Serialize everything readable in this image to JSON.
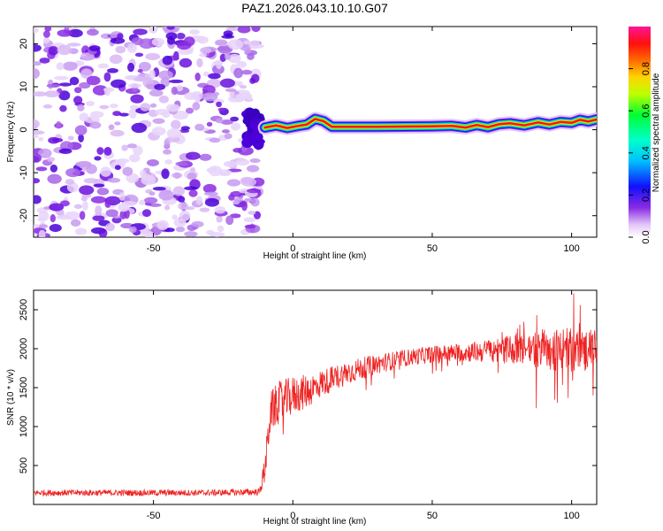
{
  "chart_data": [
    {
      "type": "heatmap",
      "title": "PAZ1.2026.043.10.10.G07",
      "xlabel": "Height of straight line (km)",
      "ylabel": "Frequency (Hz)",
      "xlim": [
        -93,
        109
      ],
      "ylim": [
        -25,
        24
      ],
      "xticks": [
        -50,
        0,
        50,
        100
      ],
      "yticks": [
        20,
        10,
        0,
        -10,
        -20
      ],
      "noise_region_x": [
        -93,
        -12
      ],
      "signal_line": {
        "x": [
          -10,
          -6,
          -2,
          2,
          5,
          8,
          11,
          14,
          30,
          50,
          57,
          62,
          66,
          70,
          74,
          78,
          83,
          88,
          92,
          96,
          100,
          103,
          106,
          109
        ],
        "freq": [
          0.5,
          1.0,
          0.4,
          0.9,
          1.2,
          2.5,
          2.0,
          0.7,
          0.7,
          0.8,
          0.9,
          0.5,
          1.1,
          0.6,
          1.3,
          1.5,
          1.0,
          1.7,
          1.2,
          1.8,
          1.6,
          2.3,
          1.9,
          2.4
        ]
      },
      "colorbar": {
        "label": "Normalized spectral amplitude",
        "ticks": [
          "0.0",
          "0.2",
          "0.4",
          "0.6",
          "0.8"
        ],
        "range": [
          0,
          1
        ]
      }
    },
    {
      "type": "line",
      "xlabel": "Height of straight line (km)",
      "ylabel": "SNR (10 * v/v)",
      "xlim": [
        -93,
        109
      ],
      "ylim": [
        0,
        2750
      ],
      "xticks": [
        -50,
        0,
        50,
        100
      ],
      "yticks": [
        500,
        1000,
        1500,
        2000,
        2500
      ],
      "series": [
        {
          "name": "SNR",
          "color": "#ee2222",
          "envelope_x": [
            -93,
            -60,
            -30,
            -12,
            -10,
            -8,
            -5,
            0,
            5,
            10,
            20,
            30,
            40,
            50,
            60,
            70,
            80,
            90,
            100,
            109
          ],
          "envelope_mean": [
            150,
            150,
            150,
            160,
            450,
            1200,
            1300,
            1400,
            1450,
            1550,
            1700,
            1800,
            1880,
            1930,
            1950,
            1970,
            2000,
            2000,
            1980,
            1990
          ],
          "envelope_spread": [
            40,
            40,
            40,
            45,
            200,
            250,
            280,
            250,
            220,
            180,
            150,
            130,
            110,
            110,
            120,
            150,
            200,
            280,
            300,
            250
          ]
        }
      ]
    }
  ]
}
